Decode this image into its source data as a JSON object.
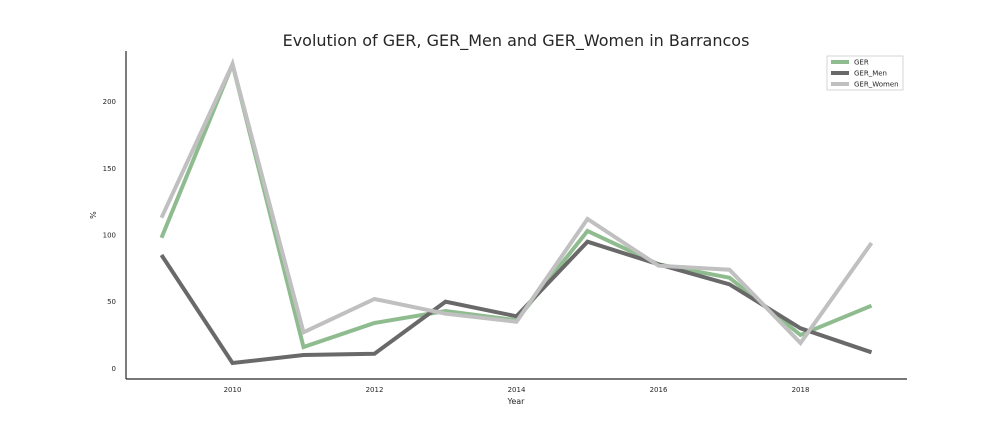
{
  "chart_data": {
    "type": "line",
    "title": "Evolution of GER, GER_Men and GER_Women in Barrancos",
    "xlabel": "Year",
    "ylabel": "%",
    "x": [
      2009,
      2010,
      2011,
      2012,
      2013,
      2014,
      2015,
      2016,
      2017,
      2018,
      2019
    ],
    "xlim": [
      2008.5,
      2019.5
    ],
    "ylim": [
      -8,
      238
    ],
    "xticks": [
      2010,
      2012,
      2014,
      2016,
      2018
    ],
    "yticks": [
      0,
      50,
      100,
      150,
      200
    ],
    "grid": false,
    "legend_position": "top-right",
    "series": [
      {
        "name": "GER",
        "color": "#8fbc8f",
        "values": [
          98,
          228,
          16,
          34,
          43,
          36,
          103,
          78,
          68,
          25,
          47
        ]
      },
      {
        "name": "GER_Men",
        "color": "#696969",
        "values": [
          85,
          4,
          10,
          11,
          50,
          39,
          95,
          78,
          63,
          30,
          12
        ]
      },
      {
        "name": "GER_Women",
        "color": "#c0c0c0",
        "values": [
          113,
          228,
          27,
          52,
          41,
          35,
          112,
          77,
          74,
          19,
          94
        ]
      }
    ]
  }
}
